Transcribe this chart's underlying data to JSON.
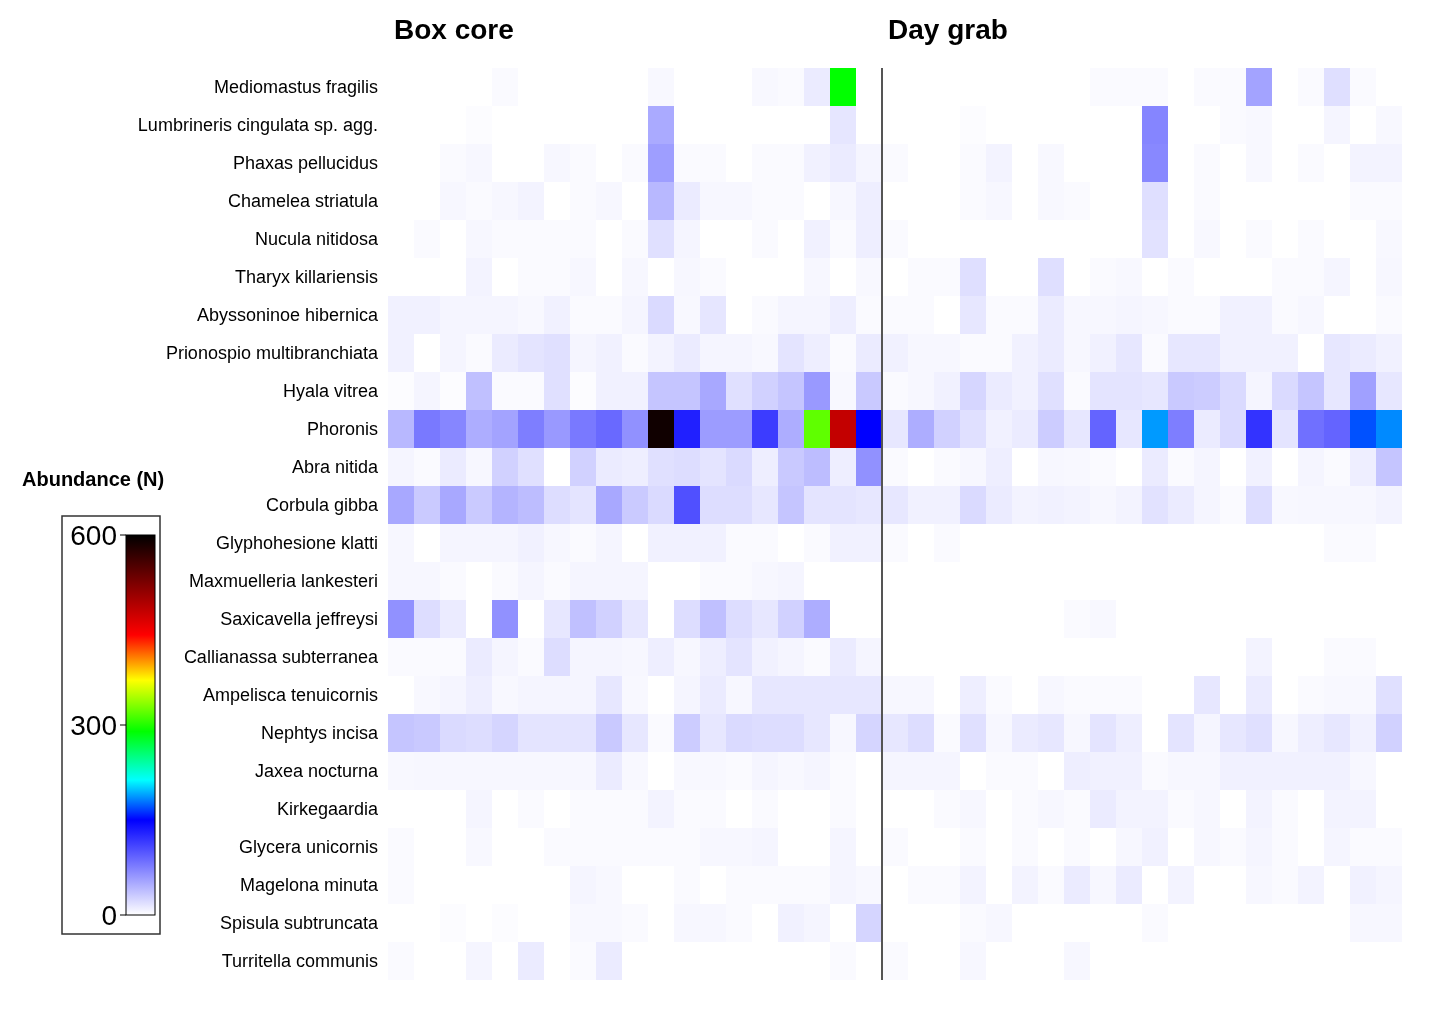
{
  "chart_data": {
    "type": "heatmap",
    "annotations": [
      "Box core",
      "Day grab"
    ],
    "clabel": "Abundance (N)",
    "clim": [
      0,
      600
    ],
    "cticks": [
      0,
      300,
      600
    ],
    "categories": [
      null,
      null,
      null,
      null,
      null,
      null,
      null,
      null,
      null,
      null,
      null,
      null,
      null,
      null,
      null,
      null,
      null,
      null,
      null,
      null,
      null,
      null,
      null,
      null,
      null,
      null,
      null,
      null,
      null,
      null,
      null,
      null,
      null,
      null,
      null,
      null,
      null,
      null,
      null
    ],
    "y_categories": [
      "Mediomastus fragilis",
      "Lumbrineris cingulata sp. agg.",
      "Phaxas pellucidus",
      "Chamelea striatula",
      "Nucula nitidosa",
      "Tharyx killariensis",
      "Abyssoninoe hibernica",
      "Prionospio multibranchiata",
      "Hyala vitrea",
      "Phoronis",
      "Abra nitida",
      "Corbula gibba",
      "Glyphohesione klatti",
      "Maxmuelleria lankesteri",
      "Saxicavella jeffreysi",
      "Callianassa subterranea",
      "Ampelisca tenuicornis",
      "Nephtys incisa",
      "Jaxea nocturna",
      "Kirkegaardia",
      "Glycera unicornis",
      "Magelona minuta",
      "Spisula subtruncata",
      "Turritella communis"
    ],
    "cells": [
      [
        0,
        0,
        0,
        0,
        3,
        0,
        0,
        0,
        0,
        0,
        4,
        0,
        0,
        0,
        4,
        3,
        12,
        290,
        0,
        0,
        0,
        0,
        0,
        0,
        0,
        0,
        0,
        3,
        3,
        3,
        0,
        3,
        3,
        54,
        0,
        3,
        19,
        3,
        0
      ],
      [
        0,
        0,
        0,
        2,
        0,
        0,
        0,
        0,
        0,
        0,
        50,
        0,
        0,
        0,
        0,
        0,
        0,
        15,
        0,
        0,
        0,
        0,
        2,
        0,
        0,
        0,
        0,
        0,
        0,
        72,
        0,
        0,
        3,
        4,
        0,
        0,
        6,
        0,
        4
      ],
      [
        0,
        0,
        3,
        5,
        0,
        0,
        5,
        3,
        0,
        3,
        57,
        3,
        3,
        0,
        3,
        3,
        8,
        12,
        6,
        3,
        0,
        0,
        3,
        7,
        0,
        4,
        0,
        0,
        0,
        70,
        0,
        3,
        0,
        4,
        0,
        3,
        0,
        7,
        7
      ],
      [
        0,
        0,
        5,
        3,
        5,
        7,
        0,
        3,
        5,
        0,
        42,
        12,
        5,
        5,
        3,
        3,
        0,
        5,
        10,
        0,
        0,
        0,
        3,
        5,
        0,
        4,
        3,
        0,
        0,
        19,
        0,
        3,
        0,
        0,
        0,
        0,
        0,
        3,
        3
      ],
      [
        0,
        3,
        0,
        5,
        3,
        3,
        3,
        3,
        0,
        3,
        18,
        6,
        0,
        0,
        3,
        0,
        8,
        3,
        10,
        3,
        0,
        0,
        0,
        0,
        0,
        0,
        0,
        0,
        0,
        17,
        0,
        4,
        0,
        3,
        0,
        3,
        0,
        0,
        4
      ],
      [
        0,
        0,
        0,
        7,
        0,
        3,
        3,
        5,
        0,
        5,
        0,
        5,
        3,
        0,
        0,
        0,
        5,
        0,
        4,
        0,
        3,
        3,
        19,
        0,
        0,
        19,
        0,
        3,
        4,
        0,
        3,
        0,
        0,
        0,
        3,
        3,
        6,
        0,
        5
      ],
      [
        8,
        8,
        6,
        6,
        6,
        4,
        8,
        3,
        3,
        6,
        22,
        4,
        15,
        0,
        3,
        6,
        6,
        10,
        3,
        3,
        3,
        0,
        14,
        3,
        3,
        12,
        5,
        5,
        6,
        5,
        3,
        3,
        8,
        8,
        3,
        5,
        0,
        0,
        3
      ],
      [
        8,
        0,
        6,
        3,
        12,
        16,
        18,
        6,
        8,
        3,
        7,
        12,
        6,
        6,
        4,
        16,
        10,
        3,
        12,
        8,
        5,
        5,
        3,
        3,
        8,
        12,
        5,
        8,
        14,
        3,
        14,
        14,
        8,
        8,
        8,
        0,
        14,
        12,
        8
      ],
      [
        2,
        6,
        2,
        37,
        3,
        3,
        18,
        2,
        8,
        8,
        34,
        34,
        51,
        18,
        27,
        34,
        60,
        4,
        32,
        3,
        5,
        8,
        24,
        12,
        8,
        18,
        3,
        16,
        16,
        14,
        32,
        30,
        22,
        6,
        22,
        34,
        14,
        56,
        14
      ],
      [
        42,
        79,
        71,
        48,
        54,
        76,
        60,
        79,
        88,
        65,
        590,
        131,
        58,
        58,
        115,
        48,
        320,
        480,
        150,
        14,
        48,
        27,
        18,
        8,
        12,
        30,
        14,
        91,
        14,
        188,
        76,
        12,
        22,
        120,
        16,
        84,
        91,
        170,
        184
      ],
      [
        6,
        3,
        12,
        5,
        27,
        18,
        0,
        27,
        12,
        10,
        18,
        20,
        16,
        22,
        10,
        32,
        39,
        10,
        65,
        3,
        0,
        3,
        5,
        10,
        0,
        5,
        4,
        3,
        0,
        12,
        3,
        6,
        0,
        8,
        0,
        6,
        3,
        10,
        34
      ],
      [
        51,
        31,
        51,
        31,
        44,
        39,
        20,
        16,
        51,
        31,
        22,
        103,
        20,
        20,
        14,
        34,
        16,
        16,
        14,
        14,
        8,
        8,
        22,
        12,
        7,
        8,
        7,
        5,
        7,
        17,
        12,
        6,
        3,
        20,
        4,
        5,
        5,
        5,
        7
      ],
      [
        5,
        0,
        6,
        6,
        6,
        8,
        5,
        3,
        6,
        0,
        8,
        8,
        8,
        3,
        3,
        0,
        3,
        8,
        8,
        3,
        0,
        3,
        0,
        0,
        0,
        0,
        0,
        0,
        0,
        0,
        0,
        0,
        0,
        0,
        0,
        0,
        3,
        3,
        0
      ],
      [
        5,
        5,
        3,
        0,
        3,
        6,
        3,
        6,
        6,
        6,
        0,
        0,
        3,
        3,
        5,
        6,
        0,
        0,
        0,
        0,
        0,
        0,
        0,
        0,
        0,
        0,
        0,
        0,
        0,
        0,
        0,
        0,
        0,
        0,
        0,
        0,
        0,
        0,
        0
      ],
      [
        65,
        20,
        12,
        0,
        65,
        0,
        14,
        37,
        27,
        14,
        0,
        20,
        37,
        20,
        14,
        27,
        48,
        0,
        0,
        0,
        0,
        0,
        0,
        0,
        0,
        0,
        3,
        4,
        0,
        0,
        0,
        0,
        0,
        0,
        0,
        0,
        0,
        0,
        0
      ],
      [
        3,
        3,
        3,
        12,
        6,
        3,
        20,
        6,
        6,
        5,
        10,
        5,
        10,
        16,
        8,
        6,
        3,
        12,
        6,
        0,
        0,
        0,
        0,
        0,
        0,
        0,
        0,
        0,
        0,
        0,
        0,
        0,
        0,
        7,
        0,
        0,
        3,
        3,
        0
      ],
      [
        0,
        4,
        6,
        10,
        4,
        6,
        6,
        6,
        14,
        4,
        0,
        6,
        12,
        5,
        14,
        14,
        14,
        14,
        14,
        5,
        5,
        0,
        10,
        3,
        0,
        5,
        3,
        3,
        3,
        0,
        0,
        14,
        0,
        12,
        0,
        3,
        4,
        4,
        18
      ],
      [
        34,
        32,
        22,
        20,
        25,
        16,
        16,
        16,
        32,
        14,
        3,
        30,
        14,
        22,
        20,
        20,
        14,
        5,
        25,
        14,
        20,
        3,
        18,
        5,
        12,
        14,
        5,
        16,
        10,
        0,
        16,
        6,
        14,
        18,
        5,
        10,
        14,
        8,
        27
      ],
      [
        4,
        5,
        5,
        5,
        5,
        5,
        5,
        5,
        12,
        4,
        0,
        4,
        4,
        3,
        6,
        4,
        6,
        3,
        0,
        6,
        6,
        6,
        0,
        3,
        3,
        0,
        10,
        8,
        8,
        3,
        5,
        5,
        8,
        8,
        8,
        8,
        8,
        5,
        0
      ],
      [
        0,
        0,
        0,
        6,
        0,
        3,
        0,
        3,
        3,
        3,
        7,
        3,
        3,
        0,
        3,
        0,
        0,
        3,
        0,
        0,
        0,
        3,
        5,
        0,
        3,
        5,
        3,
        12,
        7,
        7,
        3,
        5,
        0,
        7,
        3,
        0,
        7,
        7,
        0
      ],
      [
        3,
        0,
        0,
        4,
        0,
        0,
        3,
        3,
        3,
        3,
        3,
        3,
        5,
        5,
        6,
        0,
        0,
        6,
        0,
        3,
        0,
        0,
        3,
        0,
        3,
        0,
        3,
        0,
        5,
        8,
        0,
        5,
        3,
        6,
        3,
        0,
        6,
        3,
        3
      ],
      [
        3,
        0,
        0,
        0,
        0,
        0,
        0,
        6,
        4,
        0,
        0,
        3,
        0,
        3,
        3,
        3,
        3,
        6,
        4,
        0,
        3,
        3,
        7,
        0,
        7,
        3,
        12,
        5,
        12,
        0,
        7,
        0,
        0,
        5,
        3,
        7,
        0,
        8,
        6
      ],
      [
        0,
        0,
        2,
        0,
        2,
        0,
        0,
        4,
        4,
        3,
        0,
        5,
        5,
        3,
        0,
        8,
        6,
        0,
        25,
        0,
        0,
        0,
        3,
        5,
        0,
        0,
        0,
        0,
        0,
        3,
        0,
        0,
        0,
        0,
        0,
        0,
        0,
        5,
        5
      ],
      [
        3,
        0,
        0,
        6,
        0,
        12,
        0,
        3,
        12,
        0,
        0,
        0,
        0,
        0,
        0,
        0,
        0,
        3,
        0,
        3,
        0,
        0,
        5,
        0,
        0,
        0,
        5,
        0,
        0,
        0,
        0,
        0,
        0,
        0,
        0,
        0,
        0,
        0,
        0
      ]
    ]
  }
}
